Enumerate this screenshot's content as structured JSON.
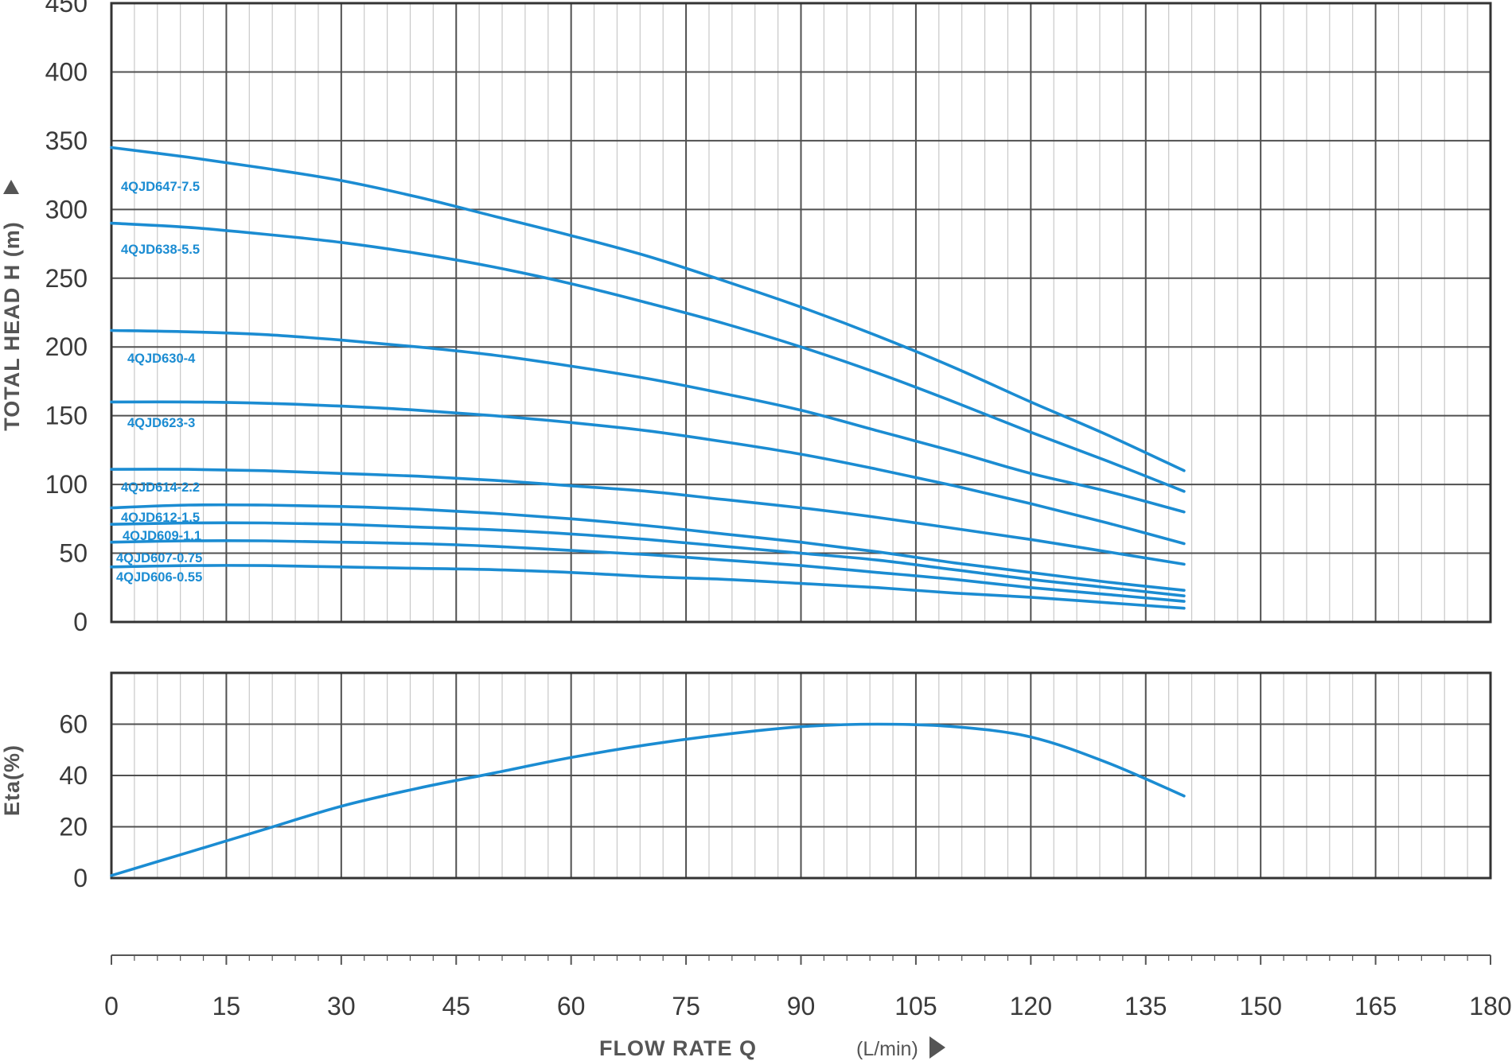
{
  "chart_data": [
    {
      "type": "line",
      "title": "",
      "xlabel": "FLOW RATE Q",
      "xunit": "(L/min)",
      "ylabel": "TOTAL HEAD H (m)",
      "xlim": [
        0,
        180
      ],
      "ylim": [
        0,
        450
      ],
      "grid": true,
      "x_ticks": [
        0,
        15,
        30,
        45,
        60,
        75,
        90,
        105,
        120,
        135,
        150,
        165,
        180
      ],
      "y_ticks": [
        0,
        50,
        100,
        150,
        200,
        250,
        300,
        350,
        400,
        450
      ],
      "x": [
        0,
        10,
        20,
        30,
        40,
        50,
        60,
        70,
        80,
        90,
        100,
        110,
        120,
        130,
        140
      ],
      "series": [
        {
          "name": "4QJD647-7.5",
          "values": [
            345,
            338,
            330,
            321,
            309,
            295,
            281,
            266,
            248,
            229,
            208,
            185,
            160,
            136,
            110
          ]
        },
        {
          "name": "4QJD638-5.5",
          "values": [
            290,
            287,
            282,
            276,
            268,
            258,
            246,
            232,
            217,
            200,
            181,
            160,
            138,
            117,
            95
          ]
        },
        {
          "name": "4QJD630-4",
          "values": [
            212,
            211,
            209,
            205,
            200,
            194,
            186,
            177,
            166,
            154,
            139,
            124,
            108,
            95,
            80
          ]
        },
        {
          "name": "4QJD623-3",
          "values": [
            160,
            160,
            159,
            157,
            154,
            150,
            145,
            139,
            131,
            122,
            111,
            99,
            86,
            72,
            57
          ]
        },
        {
          "name": "4QJD614-2.2",
          "values": [
            111,
            111,
            110,
            108,
            106,
            103,
            99,
            95,
            89,
            83,
            76,
            68,
            60,
            51,
            42
          ]
        },
        {
          "name": "4QJD612-1.5",
          "values": [
            83,
            85,
            85,
            84,
            82,
            79,
            75,
            70,
            64,
            58,
            51,
            43,
            36,
            29,
            23
          ]
        },
        {
          "name": "4QJD609-1.1",
          "values": [
            71,
            72,
            72,
            71,
            69,
            67,
            64,
            60,
            55,
            50,
            45,
            38,
            31,
            25,
            19
          ]
        },
        {
          "name": "4QJD607-0.75",
          "values": [
            58,
            59,
            59,
            58,
            57,
            55,
            52,
            49,
            45,
            41,
            36,
            31,
            25,
            20,
            15
          ]
        },
        {
          "name": "4QJD606-0.55",
          "values": [
            40,
            41,
            41,
            40,
            39,
            38,
            36,
            33,
            31,
            28,
            25,
            21,
            18,
            14,
            10
          ]
        }
      ],
      "colors": {
        "series": "#1b8cd2",
        "grid_major": "#505050",
        "grid_minor": "#c8c8c8",
        "frame": "#333333"
      }
    },
    {
      "type": "line",
      "title": "",
      "xlabel": "FLOW RATE Q",
      "ylabel": "Eta(%)",
      "xlim": [
        0,
        180
      ],
      "ylim": [
        0,
        80
      ],
      "grid": true,
      "y_ticks": [
        0,
        20,
        40,
        60
      ],
      "x": [
        0,
        10,
        20,
        30,
        40,
        50,
        60,
        70,
        80,
        90,
        100,
        110,
        120,
        130,
        140
      ],
      "series": [
        {
          "name": "",
          "values": [
            1,
            10,
            19,
            28,
            35,
            41,
            47,
            52,
            56,
            59,
            60,
            59,
            55,
            45,
            32
          ]
        }
      ],
      "colors": {
        "series": "#1b8cd2"
      }
    }
  ]
}
